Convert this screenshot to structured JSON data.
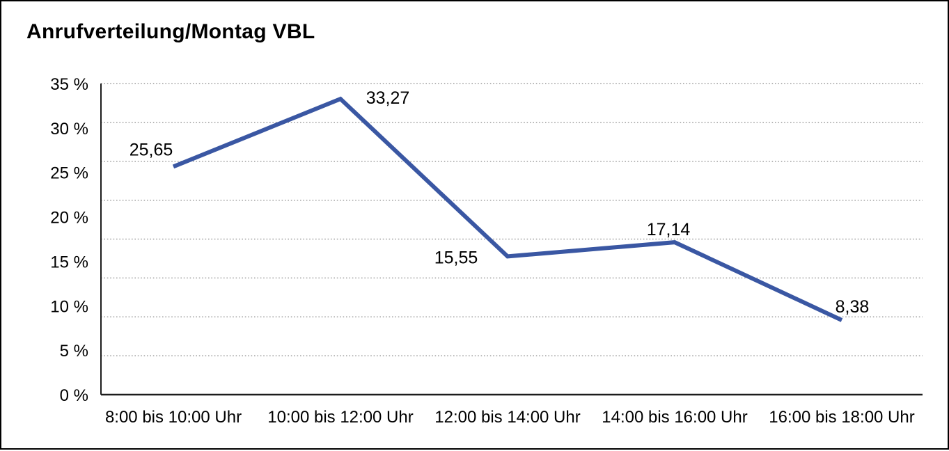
{
  "chart_data": {
    "type": "line",
    "title": "Anrufverteilung/Montag VBL",
    "categories": [
      "8:00 bis 10:00 Uhr",
      "10:00 bis 12:00 Uhr",
      "12:00 bis 14:00 Uhr",
      "14:00 bis 16:00 Uhr",
      "16:00 bis 18:00 Uhr"
    ],
    "values": [
      25.65,
      33.27,
      15.55,
      17.14,
      8.38
    ],
    "value_labels": [
      "25,65",
      "33,27",
      "15,55",
      "17,14",
      "8,38"
    ],
    "xlabel": "",
    "ylabel": "",
    "y_ticks": [
      "35 %",
      "30 %",
      "25 %",
      "20 %",
      "15 %",
      "10 %",
      "5 %",
      "0 %"
    ],
    "y_tick_values": [
      35,
      30,
      25,
      20,
      15,
      10,
      5,
      0
    ],
    "ylim": [
      0,
      35
    ],
    "grid": {
      "horizontal": "dotted",
      "divisions": 8,
      "vertical": "off"
    },
    "legend": "none",
    "colors": {
      "line": "#3A57A3",
      "grid": "#8a8a8a",
      "axis": "#1c1c1c",
      "text": "#000000",
      "background": "#ffffff",
      "border": "#000000"
    }
  }
}
